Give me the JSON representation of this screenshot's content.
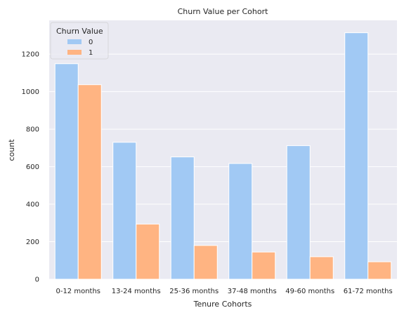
{
  "chart_data": {
    "type": "bar",
    "title": "Churn Value per Cohort",
    "xlabel": "Tenure Cohorts",
    "ylabel": "count",
    "categories": [
      "0-12 months",
      "13-24 months",
      "25-36 months",
      "37-48 months",
      "49-60 months",
      "61-72 months"
    ],
    "series": [
      {
        "name": "0",
        "color": "#a1c9f4",
        "values": [
          1149,
          730,
          652,
          617,
          712,
          1314
        ]
      },
      {
        "name": "1",
        "color": "#ffb482",
        "values": [
          1037,
          294,
          180,
          145,
          120,
          93
        ]
      }
    ],
    "ylim": [
      0,
      1380
    ],
    "yticks": [
      0,
      200,
      400,
      600,
      800,
      1000,
      1200
    ],
    "grid": true,
    "legend": {
      "title": "Churn Value",
      "placement": "top-left"
    },
    "colors": {
      "background": "#eaeaf2",
      "grid": "#ffffff"
    }
  }
}
